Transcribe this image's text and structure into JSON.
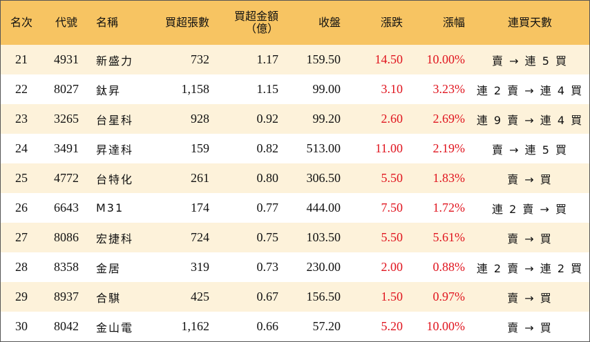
{
  "table": {
    "headers": [
      "名次",
      "代號",
      "名稱",
      "買超張數",
      "買超金額\n（億）",
      "收盤",
      "漲跌",
      "漲幅",
      "連買天數"
    ],
    "rows": [
      [
        "21",
        "4931",
        "新盛力",
        "732",
        "1.17",
        "159.50",
        "14.50",
        "10.00%",
        "賣 → 連 5 買"
      ],
      [
        "22",
        "8027",
        "鈦昇",
        "1,158",
        "1.15",
        "99.00",
        "3.10",
        "3.23%",
        "連 2 賣 → 連 4 買"
      ],
      [
        "23",
        "3265",
        "台星科",
        "928",
        "0.92",
        "99.20",
        "2.60",
        "2.69%",
        "連 9 賣 → 連 4 買"
      ],
      [
        "24",
        "3491",
        "昇達科",
        "159",
        "0.82",
        "513.00",
        "11.00",
        "2.19%",
        "賣 → 連 5 買"
      ],
      [
        "25",
        "4772",
        "台特化",
        "261",
        "0.80",
        "306.50",
        "5.50",
        "1.83%",
        "賣 → 買"
      ],
      [
        "26",
        "6643",
        "M31",
        "174",
        "0.77",
        "444.00",
        "7.50",
        "1.72%",
        "連 2 賣 → 買"
      ],
      [
        "27",
        "8086",
        "宏捷科",
        "724",
        "0.75",
        "103.50",
        "5.50",
        "5.61%",
        "賣 → 買"
      ],
      [
        "28",
        "8358",
        "金居",
        "319",
        "0.73",
        "230.00",
        "2.00",
        "0.88%",
        "連 2 賣 → 連 2 買"
      ],
      [
        "29",
        "8937",
        "合騏",
        "425",
        "0.67",
        "156.50",
        "1.50",
        "0.97%",
        "賣 → 買"
      ],
      [
        "30",
        "8042",
        "金山電",
        "1,162",
        "0.66",
        "57.20",
        "5.20",
        "10.00%",
        "賣 → 買"
      ]
    ]
  }
}
